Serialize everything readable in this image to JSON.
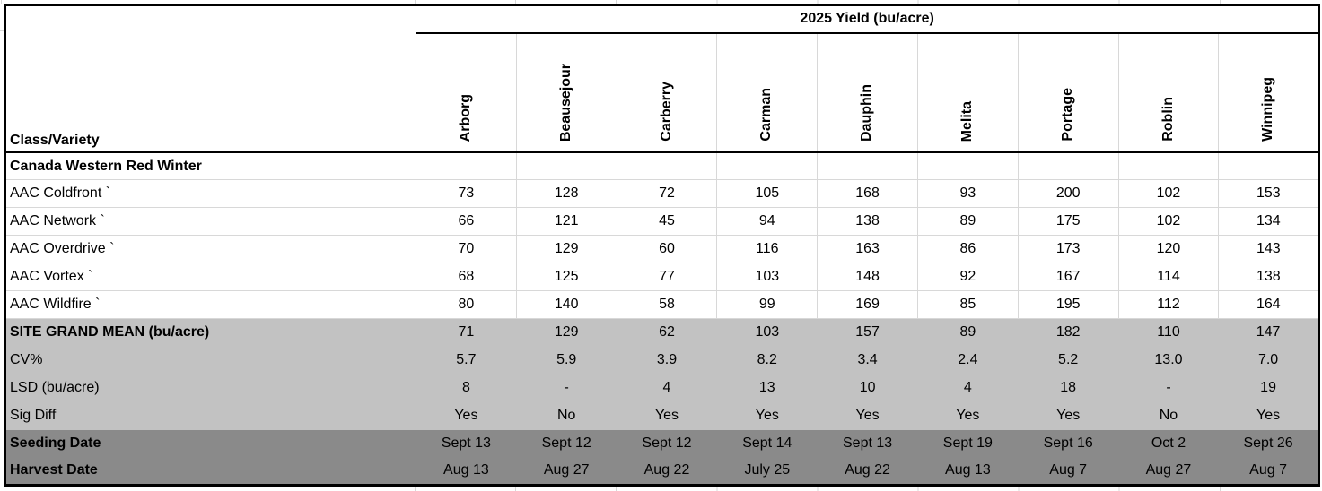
{
  "chart_data": {
    "type": "table",
    "title": "2025 Yield (bu/acre)",
    "corner_header": "Class/Variety",
    "columns": [
      "Arborg",
      "Beausejour",
      "Carberry",
      "Carman",
      "Dauphin",
      "Melita",
      "Portage",
      "Roblin",
      "Winnipeg"
    ],
    "rows": [
      {
        "label": "Canada Western Red Winter",
        "style": "class",
        "values": [
          "",
          "",
          "",
          "",
          "",
          "",
          "",
          "",
          ""
        ]
      },
      {
        "label": "AAC Coldfront `",
        "style": "variety",
        "values": [
          "73",
          "128",
          "72",
          "105",
          "168",
          "93",
          "200",
          "102",
          "153"
        ]
      },
      {
        "label": "AAC Network `",
        "style": "variety",
        "values": [
          "66",
          "121",
          "45",
          "94",
          "138",
          "89",
          "175",
          "102",
          "134"
        ]
      },
      {
        "label": "AAC Overdrive `",
        "style": "variety",
        "values": [
          "70",
          "129",
          "60",
          "116",
          "163",
          "86",
          "173",
          "120",
          "143"
        ]
      },
      {
        "label": "AAC Vortex `",
        "style": "variety",
        "values": [
          "68",
          "125",
          "77",
          "103",
          "148",
          "92",
          "167",
          "114",
          "138"
        ]
      },
      {
        "label": "AAC Wildfire `",
        "style": "variety",
        "values": [
          "80",
          "140",
          "58",
          "99",
          "169",
          "85",
          "195",
          "112",
          "164"
        ]
      },
      {
        "label": "SITE GRAND MEAN (bu/acre)",
        "style": "stat-bold",
        "values": [
          "71",
          "129",
          "62",
          "103",
          "157",
          "89",
          "182",
          "110",
          "147"
        ]
      },
      {
        "label": "CV%",
        "style": "stat",
        "values": [
          "5.7",
          "5.9",
          "3.9",
          "8.2",
          "3.4",
          "2.4",
          "5.2",
          "13.0",
          "7.0"
        ]
      },
      {
        "label": "LSD (bu/acre)",
        "style": "stat",
        "values": [
          "8",
          "-",
          "4",
          "13",
          "10",
          "4",
          "18",
          "-",
          "19"
        ]
      },
      {
        "label": "Sig Diff",
        "style": "stat",
        "values": [
          "Yes",
          "No",
          "Yes",
          "Yes",
          "Yes",
          "Yes",
          "Yes",
          "No",
          "Yes"
        ]
      },
      {
        "label": "Seeding Date",
        "style": "date",
        "values": [
          "Sept 13",
          "Sept 12",
          "Sept 12",
          "Sept 14",
          "Sept 13",
          "Sept 19",
          "Sept 16",
          "Oct 2",
          "Sept 26"
        ]
      },
      {
        "label": "Harvest Date",
        "style": "date",
        "values": [
          "Aug 13",
          "Aug 27",
          "Aug 22",
          "July 25",
          "Aug 22",
          "Aug 13",
          "Aug 7",
          "Aug 27",
          "Aug 7"
        ]
      }
    ]
  },
  "colors": {
    "stats_band_bg": "#c2c2c2",
    "dates_band_bg": "#8a8a8a",
    "gridline": "#d8d8d8",
    "table_border": "#000000"
  }
}
